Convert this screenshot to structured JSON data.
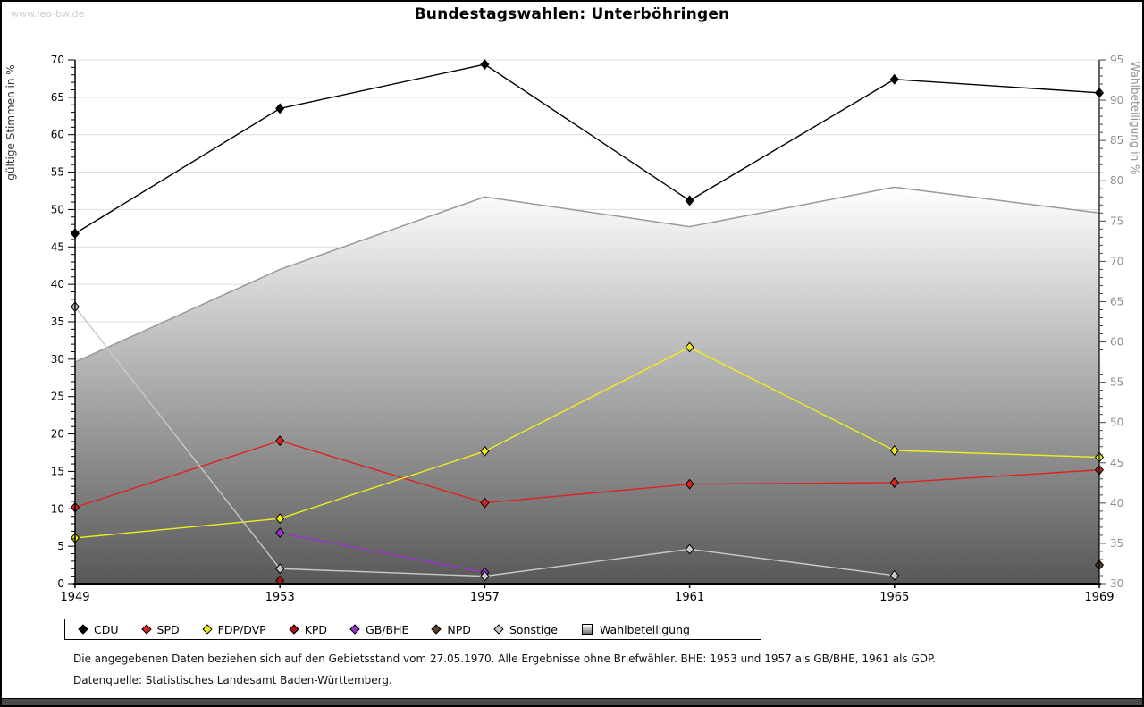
{
  "page": {
    "watermark": "www.leo-bw.de",
    "title": "Bundestagswahlen: Unterböhringen",
    "footnote1": "Die angegebenen Daten beziehen sich auf den Gebietsstand vom 27.05.1970. Alle Ergebnisse ohne Briefwähler. BHE: 1953 und 1957 als GB/BHE, 1961 als GDP.",
    "footnote2": "Datenquelle: Statistisches Landesamt Baden-Württemberg."
  },
  "chart_data": {
    "type": "line",
    "title": "Bundestagswahlen: Unterböhringen",
    "x": [
      "1949",
      "1953",
      "1957",
      "1961",
      "1965",
      "1969"
    ],
    "left_axis": {
      "label": "gültige Stimmen in %",
      "min": 0,
      "max": 70,
      "tick_step": 5,
      "minor_step": 1
    },
    "right_axis": {
      "label": "Wahlbeteiligung in %",
      "min": 30,
      "max": 95,
      "tick_step": 5,
      "minor_step": 1
    },
    "grid": "horizontal",
    "legend_position": "bottom",
    "area_series": {
      "name": "Wahlbeteiligung",
      "axis": "right",
      "values": [
        57.5,
        69.0,
        78.0,
        74.3,
        79.2,
        76.0
      ],
      "edge_color": "#999999",
      "fill_top": "#ffffff",
      "fill_bottom": "#585858"
    },
    "series": [
      {
        "name": "CDU",
        "color": "#000000",
        "axis": "left",
        "values": [
          46.8,
          63.5,
          69.4,
          51.2,
          67.4,
          65.6
        ]
      },
      {
        "name": "SPD",
        "color": "#dd2222",
        "axis": "left",
        "values": [
          10.2,
          19.1,
          10.8,
          13.3,
          13.5,
          15.2
        ]
      },
      {
        "name": "FDP/DVP",
        "color": "#f0ee1e",
        "axis": "left",
        "values": [
          6.1,
          8.7,
          17.7,
          31.6,
          17.8,
          16.9
        ]
      },
      {
        "name": "KPD",
        "color": "#aa1116",
        "axis": "left",
        "values": [
          null,
          0.4,
          null,
          null,
          null,
          null
        ]
      },
      {
        "name": "GB/BHE",
        "color": "#9933cc",
        "axis": "left",
        "values": [
          null,
          6.8,
          1.5,
          null,
          null,
          null
        ]
      },
      {
        "name": "NPD",
        "color": "#5c3d26",
        "axis": "left",
        "values": [
          null,
          null,
          null,
          null,
          null,
          2.5
        ]
      },
      {
        "name": "Sonstige",
        "color": "#c9c9c9",
        "axis": "left",
        "values": [
          37.0,
          2.0,
          1.0,
          4.6,
          1.1,
          null
        ]
      }
    ],
    "colors": {
      "gridline": "#dcdcdc",
      "axis": "#000000",
      "right_axis_text": "#909090",
      "left_axis_text": "#000000"
    }
  },
  "legend": {
    "items": [
      {
        "label": "CDU",
        "marker": "diamond",
        "color": "#000000"
      },
      {
        "label": "SPD",
        "marker": "diamond",
        "color": "#dd2222"
      },
      {
        "label": "FDP/DVP",
        "marker": "diamond",
        "color": "#f0ee1e"
      },
      {
        "label": "KPD",
        "marker": "diamond",
        "color": "#aa1116"
      },
      {
        "label": "GB/BHE",
        "marker": "diamond",
        "color": "#9933cc"
      },
      {
        "label": "NPD",
        "marker": "diamond",
        "color": "#5c3d26"
      },
      {
        "label": "Sonstige",
        "marker": "diamond",
        "color": "#c9c9c9"
      },
      {
        "label": "Wahlbeteiligung",
        "marker": "square",
        "color": "#bbbbbb"
      }
    ]
  }
}
